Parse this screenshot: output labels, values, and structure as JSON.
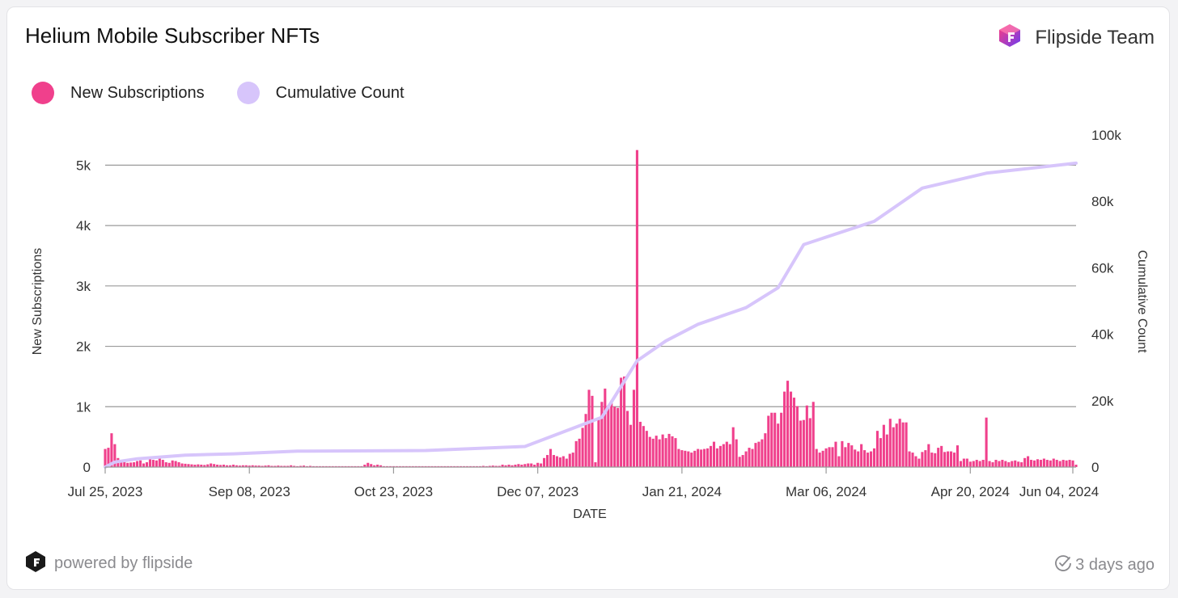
{
  "header": {
    "title": "Helium Mobile Subscriber NFTs",
    "brand_label": "Flipside Team"
  },
  "legend": [
    {
      "label": "New Subscriptions",
      "color": "#f0408c"
    },
    {
      "label": "Cumulative Count",
      "color": "#d7c5fb"
    }
  ],
  "footer": {
    "powered_by": "powered by flipside",
    "updated": "3 days ago"
  },
  "icons": {
    "brand": "flipside-logo-icon",
    "powered": "flipside-mark-icon",
    "updated": "clock-check-icon"
  },
  "chart_data": {
    "type": "bar",
    "title": "Helium Mobile Subscriber NFTs",
    "xlabel": "DATE",
    "ylabel": "New Subscriptions",
    "y2label": "Cumulative Count",
    "ylim": [
      0,
      5500
    ],
    "y2lim": [
      0,
      100000
    ],
    "yticks": [
      "0",
      "1k",
      "2k",
      "3k",
      "4k",
      "5k"
    ],
    "y2ticks": [
      "0",
      "20k",
      "40k",
      "60k",
      "80k",
      "100k"
    ],
    "xticks": [
      "Jul 25, 2023",
      "Sep 08, 2023",
      "Oct 23, 2023",
      "Dec 07, 2023",
      "Jan 21, 2024",
      "Mar 06, 2024",
      "Apr 20, 2024",
      "Jun 04, 2024"
    ],
    "grid": true,
    "legend_position": "top-left",
    "series": [
      {
        "name": "New Subscriptions",
        "type": "bar",
        "color": "#f0408c",
        "values": [
          [
            0,
            300
          ],
          [
            1,
            320
          ],
          [
            2,
            560
          ],
          [
            3,
            380
          ],
          [
            4,
            150
          ],
          [
            5,
            90
          ],
          [
            6,
            80
          ],
          [
            7,
            70
          ],
          [
            8,
            75
          ],
          [
            9,
            80
          ],
          [
            10,
            100
          ],
          [
            11,
            110
          ],
          [
            12,
            60
          ],
          [
            13,
            80
          ],
          [
            14,
            160
          ],
          [
            15,
            120
          ],
          [
            16,
            110
          ],
          [
            17,
            170
          ],
          [
            18,
            120
          ],
          [
            19,
            80
          ],
          [
            20,
            70
          ],
          [
            21,
            110
          ],
          [
            22,
            100
          ],
          [
            23,
            80
          ],
          [
            24,
            60
          ],
          [
            25,
            55
          ],
          [
            26,
            50
          ],
          [
            27,
            45
          ],
          [
            28,
            40
          ],
          [
            29,
            45
          ],
          [
            30,
            40
          ],
          [
            31,
            35
          ],
          [
            32,
            45
          ],
          [
            33,
            60
          ],
          [
            34,
            50
          ],
          [
            35,
            40
          ],
          [
            36,
            35
          ],
          [
            37,
            40
          ],
          [
            38,
            30
          ],
          [
            39,
            30
          ],
          [
            40,
            40
          ],
          [
            41,
            30
          ],
          [
            42,
            25
          ],
          [
            43,
            30
          ],
          [
            44,
            30
          ],
          [
            45,
            25
          ],
          [
            46,
            30
          ],
          [
            47,
            25
          ],
          [
            48,
            25
          ],
          [
            49,
            20
          ],
          [
            50,
            25
          ],
          [
            51,
            30
          ],
          [
            52,
            20
          ],
          [
            53,
            20
          ],
          [
            54,
            25
          ],
          [
            55,
            20
          ],
          [
            56,
            20
          ],
          [
            57,
            20
          ],
          [
            58,
            30
          ],
          [
            59,
            20
          ],
          [
            60,
            15
          ],
          [
            61,
            20
          ],
          [
            62,
            25
          ],
          [
            63,
            15
          ],
          [
            64,
            20
          ],
          [
            65,
            15
          ],
          [
            66,
            15
          ],
          [
            67,
            15
          ],
          [
            68,
            15
          ],
          [
            69,
            15
          ],
          [
            70,
            15
          ],
          [
            71,
            15
          ],
          [
            72,
            15
          ],
          [
            73,
            15
          ],
          [
            74,
            15
          ],
          [
            75,
            15
          ],
          [
            76,
            15
          ],
          [
            77,
            15
          ],
          [
            78,
            15
          ],
          [
            79,
            15
          ],
          [
            80,
            15
          ],
          [
            81,
            40
          ],
          [
            82,
            70
          ],
          [
            83,
            50
          ],
          [
            84,
            30
          ],
          [
            85,
            40
          ],
          [
            86,
            30
          ],
          [
            87,
            15
          ],
          [
            88,
            15
          ],
          [
            89,
            15
          ],
          [
            90,
            15
          ],
          [
            91,
            15
          ],
          [
            92,
            15
          ],
          [
            93,
            15
          ],
          [
            94,
            15
          ],
          [
            95,
            15
          ],
          [
            96,
            15
          ],
          [
            97,
            15
          ],
          [
            98,
            15
          ],
          [
            99,
            15
          ],
          [
            100,
            15
          ],
          [
            101,
            15
          ],
          [
            102,
            15
          ],
          [
            103,
            15
          ],
          [
            104,
            15
          ],
          [
            105,
            15
          ],
          [
            106,
            15
          ],
          [
            107,
            15
          ],
          [
            108,
            15
          ],
          [
            109,
            15
          ],
          [
            110,
            15
          ],
          [
            111,
            15
          ],
          [
            112,
            15
          ],
          [
            113,
            15
          ],
          [
            114,
            15
          ],
          [
            115,
            15
          ],
          [
            116,
            15
          ],
          [
            117,
            15
          ],
          [
            118,
            20
          ],
          [
            119,
            15
          ],
          [
            120,
            20
          ],
          [
            121,
            25
          ],
          [
            122,
            20
          ],
          [
            123,
            20
          ],
          [
            124,
            40
          ],
          [
            125,
            30
          ],
          [
            126,
            40
          ],
          [
            127,
            30
          ],
          [
            128,
            40
          ],
          [
            129,
            50
          ],
          [
            130,
            40
          ],
          [
            131,
            50
          ],
          [
            132,
            60
          ],
          [
            133,
            60
          ],
          [
            134,
            40
          ],
          [
            135,
            70
          ],
          [
            136,
            60
          ],
          [
            137,
            150
          ],
          [
            138,
            200
          ],
          [
            139,
            300
          ],
          [
            140,
            200
          ],
          [
            141,
            180
          ],
          [
            142,
            160
          ],
          [
            143,
            180
          ],
          [
            144,
            140
          ],
          [
            145,
            220
          ],
          [
            146,
            240
          ],
          [
            147,
            430
          ],
          [
            148,
            470
          ],
          [
            149,
            650
          ],
          [
            150,
            880
          ],
          [
            151,
            1280
          ],
          [
            152,
            1180
          ],
          [
            153,
            80
          ],
          [
            154,
            800
          ],
          [
            155,
            1080
          ],
          [
            156,
            1300
          ],
          [
            157,
            1020
          ],
          [
            158,
            1100
          ],
          [
            159,
            1000
          ],
          [
            160,
            980
          ],
          [
            161,
            1480
          ],
          [
            162,
            1500
          ],
          [
            163,
            930
          ],
          [
            164,
            700
          ],
          [
            165,
            1280
          ],
          [
            166,
            5250
          ],
          [
            167,
            750
          ],
          [
            168,
            680
          ],
          [
            169,
            600
          ],
          [
            170,
            500
          ],
          [
            171,
            470
          ],
          [
            172,
            520
          ],
          [
            173,
            460
          ],
          [
            174,
            540
          ],
          [
            175,
            480
          ],
          [
            176,
            550
          ],
          [
            177,
            510
          ],
          [
            178,
            480
          ],
          [
            179,
            300
          ],
          [
            180,
            280
          ],
          [
            181,
            270
          ],
          [
            182,
            260
          ],
          [
            183,
            240
          ],
          [
            184,
            270
          ],
          [
            185,
            300
          ],
          [
            186,
            290
          ],
          [
            187,
            300
          ],
          [
            188,
            310
          ],
          [
            189,
            350
          ],
          [
            190,
            420
          ],
          [
            191,
            310
          ],
          [
            192,
            350
          ],
          [
            193,
            380
          ],
          [
            194,
            420
          ],
          [
            195,
            380
          ],
          [
            196,
            660
          ],
          [
            197,
            460
          ],
          [
            198,
            170
          ],
          [
            199,
            200
          ],
          [
            200,
            260
          ],
          [
            201,
            320
          ],
          [
            202,
            300
          ],
          [
            203,
            400
          ],
          [
            204,
            420
          ],
          [
            205,
            460
          ],
          [
            206,
            560
          ],
          [
            207,
            850
          ],
          [
            208,
            900
          ],
          [
            209,
            900
          ],
          [
            210,
            720
          ],
          [
            211,
            900
          ],
          [
            212,
            1250
          ],
          [
            213,
            1430
          ],
          [
            214,
            1250
          ],
          [
            215,
            1150
          ],
          [
            216,
            1010
          ],
          [
            217,
            770
          ],
          [
            218,
            780
          ],
          [
            219,
            1020
          ],
          [
            220,
            810
          ],
          [
            221,
            1080
          ],
          [
            222,
            300
          ],
          [
            223,
            240
          ],
          [
            224,
            270
          ],
          [
            225,
            310
          ],
          [
            226,
            330
          ],
          [
            227,
            330
          ],
          [
            228,
            420
          ],
          [
            229,
            180
          ],
          [
            230,
            430
          ],
          [
            231,
            330
          ],
          [
            232,
            400
          ],
          [
            233,
            360
          ],
          [
            234,
            290
          ],
          [
            235,
            260
          ],
          [
            236,
            380
          ],
          [
            237,
            280
          ],
          [
            238,
            240
          ],
          [
            239,
            260
          ],
          [
            240,
            310
          ],
          [
            241,
            600
          ],
          [
            242,
            480
          ],
          [
            243,
            700
          ],
          [
            244,
            540
          ],
          [
            245,
            800
          ],
          [
            246,
            660
          ],
          [
            247,
            720
          ],
          [
            248,
            800
          ],
          [
            249,
            740
          ],
          [
            250,
            740
          ],
          [
            251,
            260
          ],
          [
            252,
            240
          ],
          [
            253,
            180
          ],
          [
            254,
            140
          ],
          [
            255,
            250
          ],
          [
            256,
            280
          ],
          [
            257,
            380
          ],
          [
            258,
            240
          ],
          [
            259,
            230
          ],
          [
            260,
            320
          ],
          [
            261,
            350
          ],
          [
            262,
            250
          ],
          [
            263,
            260
          ],
          [
            264,
            260
          ],
          [
            265,
            240
          ],
          [
            266,
            360
          ],
          [
            267,
            100
          ],
          [
            268,
            140
          ],
          [
            269,
            140
          ],
          [
            270,
            90
          ],
          [
            271,
            100
          ],
          [
            272,
            120
          ],
          [
            273,
            100
          ],
          [
            274,
            120
          ],
          [
            275,
            820
          ],
          [
            276,
            100
          ],
          [
            277,
            80
          ],
          [
            278,
            120
          ],
          [
            279,
            100
          ],
          [
            280,
            120
          ],
          [
            281,
            100
          ],
          [
            282,
            80
          ],
          [
            283,
            100
          ],
          [
            284,
            110
          ],
          [
            285,
            90
          ],
          [
            286,
            80
          ],
          [
            287,
            150
          ],
          [
            288,
            180
          ],
          [
            289,
            120
          ],
          [
            290,
            110
          ],
          [
            291,
            130
          ],
          [
            292,
            120
          ],
          [
            293,
            140
          ],
          [
            294,
            120
          ],
          [
            295,
            110
          ],
          [
            296,
            140
          ],
          [
            297,
            120
          ],
          [
            298,
            100
          ],
          [
            299,
            120
          ],
          [
            300,
            110
          ],
          [
            301,
            120
          ],
          [
            302,
            110
          ],
          [
            303,
            40
          ]
        ]
      },
      {
        "name": "Cumulative Count",
        "type": "line",
        "color": "#d7c5fb",
        "x": [
          0,
          3,
          10,
          25,
          40,
          60,
          100,
          131,
          155,
          166,
          175,
          185,
          200,
          210,
          218,
          240,
          255,
          275,
          303
        ],
        "values": [
          0,
          1500,
          2500,
          3600,
          4000,
          4800,
          5000,
          6200,
          15000,
          32000,
          38000,
          43000,
          48000,
          54000,
          67000,
          74000,
          84000,
          88500,
          91500
        ]
      }
    ]
  }
}
